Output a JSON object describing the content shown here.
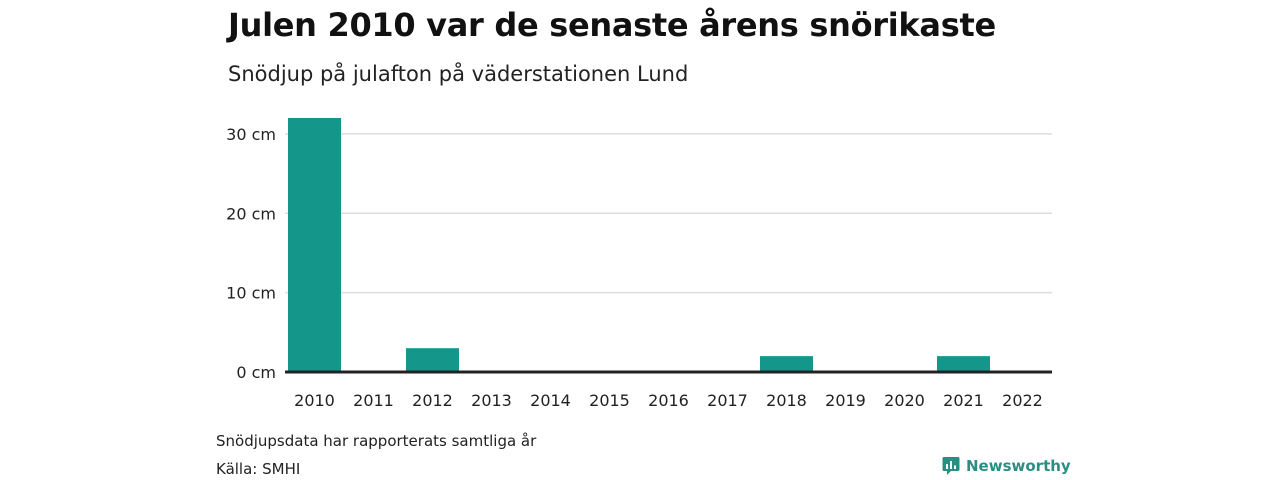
{
  "header": {
    "title": "Julen 2010 var de senaste årens snörikaste",
    "subtitle": "Snödjup på julafton på väderstationen Lund"
  },
  "footer": {
    "note": "Snödjupsdata har rapporterats samtliga år",
    "source": "Källa: SMHI",
    "brand": "Newsworthy"
  },
  "colors": {
    "bar": "#14978a",
    "grid": "#dddddd",
    "baseline": "#222222",
    "brand": "#2a8f82"
  },
  "icons": {
    "brand": "chart-speech-bubble-icon"
  },
  "chart_data": {
    "type": "bar",
    "categories": [
      "2010",
      "2011",
      "2012",
      "2013",
      "2014",
      "2015",
      "2016",
      "2017",
      "2018",
      "2019",
      "2020",
      "2021",
      "2022"
    ],
    "values": [
      32,
      0,
      3,
      0,
      0,
      0,
      0,
      0,
      2,
      0,
      0,
      2,
      0
    ],
    "title": "Julen 2010 var de senaste årens snörikaste",
    "subtitle": "Snödjup på julafton på väderstationen Lund",
    "xlabel": "",
    "ylabel": "",
    "ylim": [
      0,
      32
    ],
    "yticks": [
      0,
      10,
      20,
      30
    ],
    "ytick_labels": [
      "0 cm",
      "10 cm",
      "20 cm",
      "30 cm"
    ],
    "grid": true,
    "legend": "none"
  }
}
